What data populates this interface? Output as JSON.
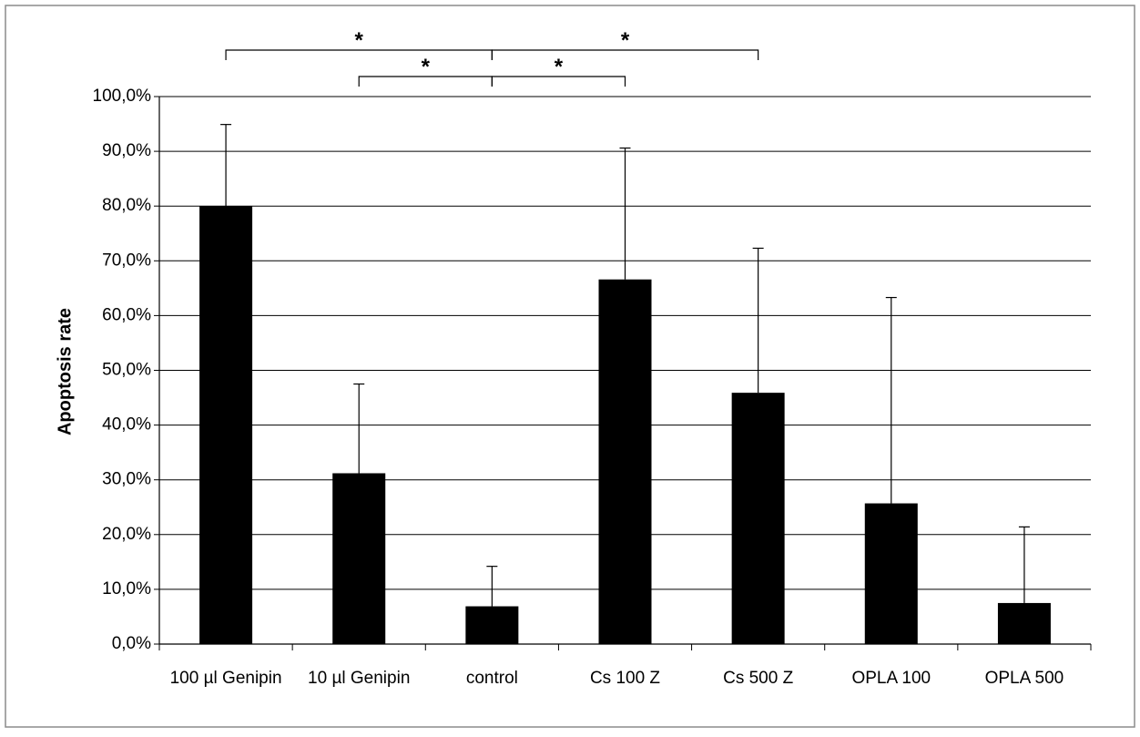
{
  "chart_data": {
    "type": "bar",
    "title": "",
    "xlabel": "",
    "ylabel": "Apoptosis rate",
    "ylim": [
      0,
      100
    ],
    "ytick_step": 10,
    "ytick_labels": [
      "0,0%",
      "10,0%",
      "20,0%",
      "30,0%",
      "40,0%",
      "50,0%",
      "60,0%",
      "70,0%",
      "80,0%",
      "90,0%",
      "100,0%"
    ],
    "grid": true,
    "legend": "none",
    "categories": [
      "100 µl Genipin",
      "10 µl Genipin",
      "control",
      "Cs 100 Z",
      "Cs 500 Z",
      "OPLA 100",
      "OPLA 500"
    ],
    "values": [
      80.0,
      31.2,
      6.9,
      66.6,
      45.9,
      25.7,
      7.5
    ],
    "error_upper": [
      94.9,
      47.5,
      14.2,
      90.6,
      72.3,
      63.3,
      21.4
    ],
    "bar_color": "#000000",
    "significance": [
      {
        "from": 0,
        "to": 2,
        "label": "*"
      },
      {
        "from": 1,
        "to": 2,
        "label": "*"
      },
      {
        "from": 2,
        "to": 4,
        "label": "*"
      },
      {
        "from": 2,
        "to": 3,
        "label": "*"
      }
    ]
  }
}
